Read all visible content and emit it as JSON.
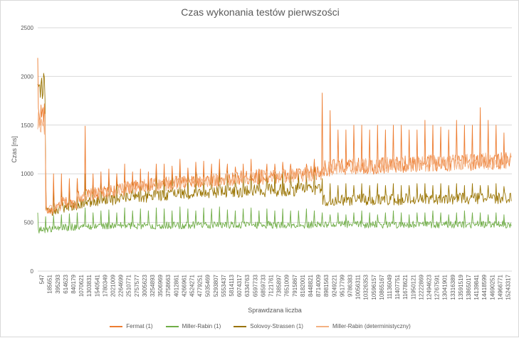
{
  "chart_data": {
    "type": "line",
    "title": "Czas wykonania testów pierwszości",
    "xlabel": "Sprawdzana liczba",
    "ylabel": "Czas [ns]",
    "ylim": [
      0,
      2500
    ],
    "yticks": [
      0,
      500,
      1000,
      1500,
      2000,
      2500
    ],
    "grid": true,
    "legend_position": "bottom",
    "x_tick_labels": [
      "547",
      "185651",
      "395293",
      "614623",
      "840179",
      "1070621",
      "1303831",
      "1540541",
      "1780349",
      "2021009",
      "2264699",
      "2510771",
      "2757577",
      "3005623",
      "3254893",
      "3506969",
      "3758663",
      "4012861",
      "4266961",
      "4524271",
      "4779251",
      "5035469",
      "5293807",
      "5553437",
      "5814113",
      "6074317",
      "6334763",
      "6597733",
      "6859733",
      "7121761",
      "7385897",
      "7651009",
      "7915867",
      "8182001",
      "8448821",
      "8714009",
      "8981563",
      "9249221",
      "9517799",
      "9786383",
      "10056311",
      "10326353",
      "10596157",
      "10865167",
      "11136049",
      "11407751",
      "11678621",
      "11950121",
      "12222869",
      "12494623",
      "12767591",
      "13041901",
      "13316389",
      "13591519",
      "13865017",
      "14139841",
      "14418599",
      "14690251",
      "14966771",
      "15243317"
    ],
    "series": [
      {
        "name": "Fermat (1)",
        "color": "#ed7d31",
        "values": [
          1600,
          620,
          650,
          700,
          690,
          760,
          780,
          790,
          800,
          820,
          830,
          850,
          860,
          870,
          880,
          880,
          890,
          900,
          900,
          910,
          920,
          930,
          930,
          940,
          940,
          950,
          950,
          960,
          960,
          960,
          970,
          970,
          980,
          980,
          990,
          1000,
          1050,
          1060,
          1060,
          1060,
          1070,
          1070,
          1070,
          1080,
          1080,
          1080,
          1090,
          1090,
          1090,
          1100,
          1100,
          1100,
          1100,
          1110,
          1110,
          1110,
          1120,
          1120,
          1120,
          1120
        ],
        "peaks": [
          2190,
          1050,
          1000,
          1000,
          950,
          950,
          1490,
          1000,
          1020,
          1050,
          1000,
          1100,
          1020,
          1050,
          1020,
          1100,
          1100,
          1080,
          1150,
          1060,
          1120,
          1130,
          1100,
          1150,
          1100,
          1070,
          1100,
          1150,
          1050,
          1100,
          1100,
          1120,
          1100,
          1050,
          1100,
          1150,
          1830,
          1650,
          1450,
          1450,
          1500,
          1500,
          1450,
          1500,
          1450,
          1500,
          1500,
          1450,
          1450,
          1550,
          1500,
          1480,
          1450,
          1550,
          1500,
          1500,
          1680,
          1550,
          1500,
          1420
        ]
      },
      {
        "name": "Miller-Rabin (1)",
        "color": "#70ad47",
        "values": [
          420,
          430,
          440,
          445,
          450,
          455,
          455,
          460,
          460,
          460,
          462,
          462,
          465,
          465,
          465,
          467,
          467,
          468,
          468,
          470,
          470,
          470,
          470,
          470,
          470,
          470,
          472,
          472,
          472,
          472,
          472,
          472,
          472,
          472,
          473,
          473,
          475,
          475,
          475,
          475,
          475,
          475,
          475,
          475,
          475,
          475,
          475,
          475,
          475,
          475,
          475,
          475,
          475,
          475,
          475,
          475,
          475,
          475,
          475,
          475
        ],
        "peaks": [
          600,
          560,
          570,
          580,
          590,
          600,
          650,
          600,
          620,
          630,
          600,
          650,
          620,
          640,
          620,
          650,
          640,
          620,
          660,
          640,
          620,
          650,
          640,
          660,
          630,
          620,
          640,
          650,
          620,
          640,
          620,
          640,
          620,
          620,
          640,
          620,
          600,
          580,
          600,
          580,
          600,
          620,
          600,
          580,
          600,
          620,
          600,
          580,
          600,
          600,
          620,
          600,
          580,
          600,
          620,
          600,
          600,
          580,
          600,
          580
        ]
      },
      {
        "name": "Solovoy-Strassen (1)",
        "color": "#997300",
        "values": [
          1900,
          600,
          620,
          650,
          660,
          690,
          700,
          710,
          720,
          730,
          740,
          750,
          760,
          760,
          770,
          775,
          780,
          785,
          790,
          795,
          800,
          800,
          805,
          810,
          810,
          815,
          815,
          820,
          820,
          825,
          825,
          830,
          830,
          835,
          835,
          840,
          720,
          725,
          725,
          725,
          730,
          730,
          730,
          730,
          730,
          730,
          735,
          735,
          735,
          735,
          735,
          735,
          740,
          740,
          740,
          740,
          740,
          740,
          745,
          745
        ],
        "peaks": [
          1920,
          1020,
          900,
          880,
          900,
          950,
          1000,
          950,
          980,
          1000,
          1000,
          1050,
          980,
          1000,
          980,
          1050,
          1020,
          1000,
          1080,
          1000,
          1020,
          1050,
          1020,
          1050,
          1030,
          1000,
          1050,
          1080,
          1000,
          1050,
          1020,
          1050,
          1040,
          1000,
          1020,
          1140,
          950,
          900,
          880,
          900,
          880,
          900,
          880,
          900,
          880,
          900,
          880,
          880,
          900,
          900,
          880,
          900,
          880,
          900,
          880,
          900,
          880,
          880,
          900,
          870
        ]
      },
      {
        "name": "Miller-Rabin (deterministyczny)",
        "color": "#f4b183",
        "values": [
          1500,
          630,
          660,
          700,
          700,
          760,
          780,
          790,
          800,
          820,
          830,
          850,
          860,
          870,
          880,
          880,
          890,
          900,
          900,
          910,
          920,
          930,
          930,
          940,
          940,
          950,
          950,
          960,
          960,
          960,
          970,
          970,
          980,
          980,
          990,
          1000,
          1050,
          1060,
          1060,
          1060,
          1070,
          1070,
          1070,
          1080,
          1080,
          1080,
          1090,
          1090,
          1090,
          1100,
          1100,
          1100,
          1100,
          1110,
          1110,
          1110,
          1120,
          1120,
          1120,
          1120
        ]
      }
    ]
  }
}
